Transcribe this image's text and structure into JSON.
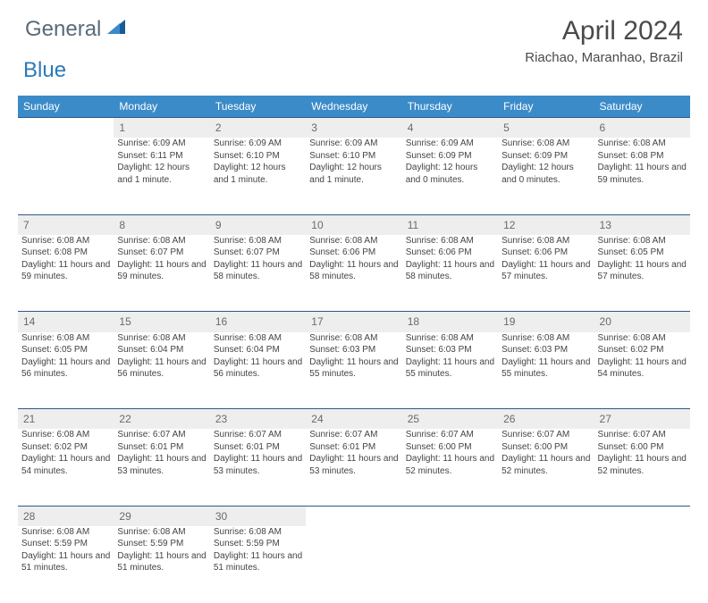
{
  "brand": {
    "general": "General",
    "blue": "Blue",
    "shape_color": "#1a5a9a"
  },
  "title": "April 2024",
  "location": "Riachao, Maranhao, Brazil",
  "header_bg": "#3b8bc9",
  "daynum_bg": "#eeeeee",
  "border_color": "#2a5a8a",
  "text_color": "#444444",
  "days": [
    "Sunday",
    "Monday",
    "Tuesday",
    "Wednesday",
    "Thursday",
    "Friday",
    "Saturday"
  ],
  "weeks": [
    {
      "nums": [
        "",
        "1",
        "2",
        "3",
        "4",
        "5",
        "6"
      ],
      "cells": [
        null,
        {
          "sunrise": "Sunrise: 6:09 AM",
          "sunset": "Sunset: 6:11 PM",
          "dl": "Daylight: 12 hours and 1 minute."
        },
        {
          "sunrise": "Sunrise: 6:09 AM",
          "sunset": "Sunset: 6:10 PM",
          "dl": "Daylight: 12 hours and 1 minute."
        },
        {
          "sunrise": "Sunrise: 6:09 AM",
          "sunset": "Sunset: 6:10 PM",
          "dl": "Daylight: 12 hours and 1 minute."
        },
        {
          "sunrise": "Sunrise: 6:09 AM",
          "sunset": "Sunset: 6:09 PM",
          "dl": "Daylight: 12 hours and 0 minutes."
        },
        {
          "sunrise": "Sunrise: 6:08 AM",
          "sunset": "Sunset: 6:09 PM",
          "dl": "Daylight: 12 hours and 0 minutes."
        },
        {
          "sunrise": "Sunrise: 6:08 AM",
          "sunset": "Sunset: 6:08 PM",
          "dl": "Daylight: 11 hours and 59 minutes."
        }
      ]
    },
    {
      "nums": [
        "7",
        "8",
        "9",
        "10",
        "11",
        "12",
        "13"
      ],
      "cells": [
        {
          "sunrise": "Sunrise: 6:08 AM",
          "sunset": "Sunset: 6:08 PM",
          "dl": "Daylight: 11 hours and 59 minutes."
        },
        {
          "sunrise": "Sunrise: 6:08 AM",
          "sunset": "Sunset: 6:07 PM",
          "dl": "Daylight: 11 hours and 59 minutes."
        },
        {
          "sunrise": "Sunrise: 6:08 AM",
          "sunset": "Sunset: 6:07 PM",
          "dl": "Daylight: 11 hours and 58 minutes."
        },
        {
          "sunrise": "Sunrise: 6:08 AM",
          "sunset": "Sunset: 6:06 PM",
          "dl": "Daylight: 11 hours and 58 minutes."
        },
        {
          "sunrise": "Sunrise: 6:08 AM",
          "sunset": "Sunset: 6:06 PM",
          "dl": "Daylight: 11 hours and 58 minutes."
        },
        {
          "sunrise": "Sunrise: 6:08 AM",
          "sunset": "Sunset: 6:06 PM",
          "dl": "Daylight: 11 hours and 57 minutes."
        },
        {
          "sunrise": "Sunrise: 6:08 AM",
          "sunset": "Sunset: 6:05 PM",
          "dl": "Daylight: 11 hours and 57 minutes."
        }
      ]
    },
    {
      "nums": [
        "14",
        "15",
        "16",
        "17",
        "18",
        "19",
        "20"
      ],
      "cells": [
        {
          "sunrise": "Sunrise: 6:08 AM",
          "sunset": "Sunset: 6:05 PM",
          "dl": "Daylight: 11 hours and 56 minutes."
        },
        {
          "sunrise": "Sunrise: 6:08 AM",
          "sunset": "Sunset: 6:04 PM",
          "dl": "Daylight: 11 hours and 56 minutes."
        },
        {
          "sunrise": "Sunrise: 6:08 AM",
          "sunset": "Sunset: 6:04 PM",
          "dl": "Daylight: 11 hours and 56 minutes."
        },
        {
          "sunrise": "Sunrise: 6:08 AM",
          "sunset": "Sunset: 6:03 PM",
          "dl": "Daylight: 11 hours and 55 minutes."
        },
        {
          "sunrise": "Sunrise: 6:08 AM",
          "sunset": "Sunset: 6:03 PM",
          "dl": "Daylight: 11 hours and 55 minutes."
        },
        {
          "sunrise": "Sunrise: 6:08 AM",
          "sunset": "Sunset: 6:03 PM",
          "dl": "Daylight: 11 hours and 55 minutes."
        },
        {
          "sunrise": "Sunrise: 6:08 AM",
          "sunset": "Sunset: 6:02 PM",
          "dl": "Daylight: 11 hours and 54 minutes."
        }
      ]
    },
    {
      "nums": [
        "21",
        "22",
        "23",
        "24",
        "25",
        "26",
        "27"
      ],
      "cells": [
        {
          "sunrise": "Sunrise: 6:08 AM",
          "sunset": "Sunset: 6:02 PM",
          "dl": "Daylight: 11 hours and 54 minutes."
        },
        {
          "sunrise": "Sunrise: 6:07 AM",
          "sunset": "Sunset: 6:01 PM",
          "dl": "Daylight: 11 hours and 53 minutes."
        },
        {
          "sunrise": "Sunrise: 6:07 AM",
          "sunset": "Sunset: 6:01 PM",
          "dl": "Daylight: 11 hours and 53 minutes."
        },
        {
          "sunrise": "Sunrise: 6:07 AM",
          "sunset": "Sunset: 6:01 PM",
          "dl": "Daylight: 11 hours and 53 minutes."
        },
        {
          "sunrise": "Sunrise: 6:07 AM",
          "sunset": "Sunset: 6:00 PM",
          "dl": "Daylight: 11 hours and 52 minutes."
        },
        {
          "sunrise": "Sunrise: 6:07 AM",
          "sunset": "Sunset: 6:00 PM",
          "dl": "Daylight: 11 hours and 52 minutes."
        },
        {
          "sunrise": "Sunrise: 6:07 AM",
          "sunset": "Sunset: 6:00 PM",
          "dl": "Daylight: 11 hours and 52 minutes."
        }
      ]
    },
    {
      "nums": [
        "28",
        "29",
        "30",
        "",
        "",
        "",
        ""
      ],
      "cells": [
        {
          "sunrise": "Sunrise: 6:08 AM",
          "sunset": "Sunset: 5:59 PM",
          "dl": "Daylight: 11 hours and 51 minutes."
        },
        {
          "sunrise": "Sunrise: 6:08 AM",
          "sunset": "Sunset: 5:59 PM",
          "dl": "Daylight: 11 hours and 51 minutes."
        },
        {
          "sunrise": "Sunrise: 6:08 AM",
          "sunset": "Sunset: 5:59 PM",
          "dl": "Daylight: 11 hours and 51 minutes."
        },
        null,
        null,
        null,
        null
      ]
    }
  ]
}
